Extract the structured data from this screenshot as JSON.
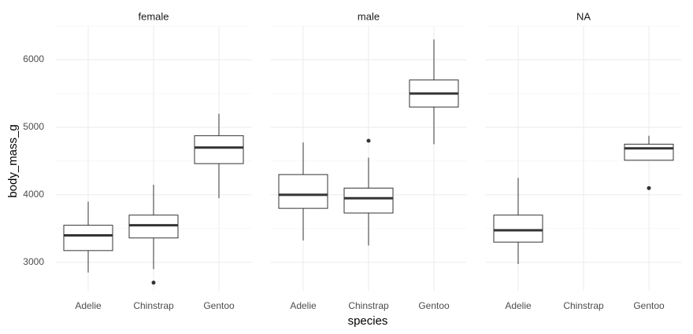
{
  "chart_data": {
    "type": "box",
    "x_label": "species",
    "y_label": "body_mass_g",
    "categories": [
      "Adelie",
      "Chinstrap",
      "Gentoo"
    ],
    "ylim": [
      2580,
      6500
    ],
    "yticks": [
      3000,
      4000,
      5000,
      6000
    ],
    "minor_grid": [
      3500,
      4500,
      5500,
      6500
    ],
    "grid": true,
    "color": "#333333",
    "fill": "#ffffff",
    "facets": [
      {
        "title": "female",
        "boxes": [
          {
            "low": 2850,
            "q1": 3175,
            "median": 3400,
            "q3": 3550,
            "high": 3900,
            "outliers": []
          },
          {
            "low": 2900,
            "q1": 3362,
            "median": 3550,
            "q3": 3700,
            "high": 4150,
            "outliers": [
              2700
            ]
          },
          {
            "low": 3950,
            "q1": 4462,
            "median": 4700,
            "q3": 4875,
            "high": 5200,
            "outliers": []
          }
        ]
      },
      {
        "title": "male",
        "boxes": [
          {
            "low": 3325,
            "q1": 3800,
            "median": 4000,
            "q3": 4300,
            "high": 4775,
            "outliers": []
          },
          {
            "low": 3250,
            "q1": 3731,
            "median": 3950,
            "q3": 4100,
            "high": 4550,
            "outliers": [
              4800
            ]
          },
          {
            "low": 4750,
            "q1": 5300,
            "median": 5500,
            "q3": 5700,
            "high": 6300,
            "outliers": []
          }
        ]
      },
      {
        "title": "NA",
        "boxes": [
          {
            "low": 2975,
            "q1": 3300,
            "median": 3475,
            "q3": 3700,
            "high": 4250,
            "outliers": []
          },
          null,
          {
            "low": 4512,
            "q1": 4512,
            "median": 4688,
            "q3": 4750,
            "high": 4875,
            "outliers": [
              4100
            ]
          }
        ]
      }
    ]
  }
}
